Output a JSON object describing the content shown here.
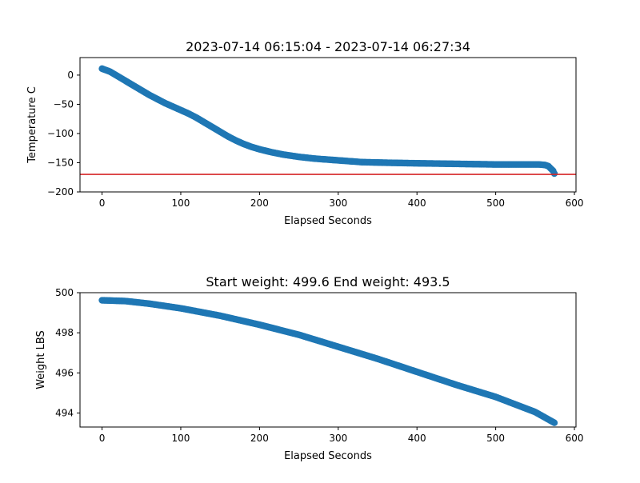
{
  "chart_data": [
    {
      "type": "scatter",
      "title": "2023-07-14 06:15:04 - 2023-07-14 06:27:34",
      "xlabel": "Elapsed Seconds",
      "ylabel": "Temperature C",
      "xlim": [
        -28,
        602
      ],
      "ylim": [
        -200,
        30
      ],
      "xticks": [
        0,
        100,
        200,
        300,
        400,
        500,
        600
      ],
      "xtick_labels": [
        "0",
        "100",
        "200",
        "300",
        "400",
        "500",
        "600"
      ],
      "yticks": [
        -200,
        -150,
        -100,
        -50,
        0
      ],
      "ytick_labels": [
        "−200",
        "−150",
        "−100",
        "−50",
        "0"
      ],
      "reference_line": {
        "y": -170,
        "color": "#d62728"
      },
      "marker_color": "#1f77b4",
      "curve": [
        [
          0,
          11
        ],
        [
          10,
          6
        ],
        [
          20,
          -2
        ],
        [
          30,
          -10
        ],
        [
          40,
          -18
        ],
        [
          50,
          -26
        ],
        [
          60,
          -34
        ],
        [
          70,
          -41
        ],
        [
          80,
          -48
        ],
        [
          90,
          -54
        ],
        [
          100,
          -60
        ],
        [
          110,
          -66
        ],
        [
          120,
          -73
        ],
        [
          130,
          -81
        ],
        [
          140,
          -89
        ],
        [
          150,
          -97
        ],
        [
          160,
          -105
        ],
        [
          170,
          -112
        ],
        [
          180,
          -118
        ],
        [
          190,
          -123
        ],
        [
          200,
          -127
        ],
        [
          215,
          -132
        ],
        [
          230,
          -136
        ],
        [
          250,
          -140
        ],
        [
          270,
          -143
        ],
        [
          300,
          -146
        ],
        [
          330,
          -149
        ],
        [
          360,
          -150
        ],
        [
          400,
          -151
        ],
        [
          450,
          -152
        ],
        [
          500,
          -153
        ],
        [
          540,
          -153
        ],
        [
          555,
          -153
        ],
        [
          563,
          -154
        ],
        [
          567,
          -156
        ],
        [
          570,
          -160
        ],
        [
          573,
          -164
        ],
        [
          575,
          -170
        ]
      ],
      "grid": false
    },
    {
      "type": "scatter",
      "title": "Start weight: 499.6 End weight: 493.5",
      "xlabel": "Elapsed Seconds",
      "ylabel": "Weight LBS",
      "xlim": [
        -28,
        602
      ],
      "ylim": [
        493.3,
        500.0
      ],
      "xticks": [
        0,
        100,
        200,
        300,
        400,
        500,
        600
      ],
      "xtick_labels": [
        "0",
        "100",
        "200",
        "300",
        "400",
        "500",
        "600"
      ],
      "yticks": [
        494,
        496,
        498,
        500
      ],
      "ytick_labels": [
        "494",
        "496",
        "498",
        "500"
      ],
      "marker_color": "#1f77b4",
      "curve": [
        [
          0,
          499.62
        ],
        [
          30,
          499.58
        ],
        [
          60,
          499.45
        ],
        [
          100,
          499.22
        ],
        [
          150,
          498.85
        ],
        [
          200,
          498.4
        ],
        [
          250,
          497.9
        ],
        [
          300,
          497.3
        ],
        [
          350,
          496.7
        ],
        [
          400,
          496.05
        ],
        [
          450,
          495.4
        ],
        [
          500,
          494.8
        ],
        [
          550,
          494.05
        ],
        [
          575,
          493.5
        ]
      ],
      "grid": false
    }
  ]
}
